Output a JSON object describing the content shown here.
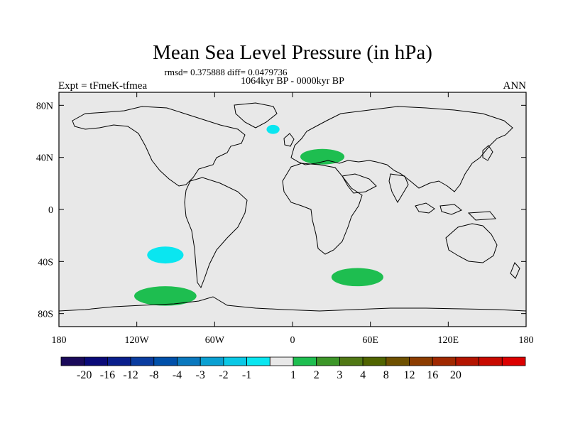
{
  "chart_data": {
    "type": "heatmap",
    "title": "Mean Sea Level Pressure (in hPa)",
    "stats_line": "rmsd= 0.375888 diff= 0.0479736",
    "period": "1064kyr BP - 0000kyr BP",
    "left_label": "Expt = tFmeK-tfmea",
    "right_label": "ANN",
    "projection": "cylindrical equidistant",
    "xlim": [
      -180,
      180
    ],
    "ylim": [
      -90,
      90
    ],
    "x_ticks": [
      {
        "value": -180,
        "label": "180"
      },
      {
        "value": -120,
        "label": "120W"
      },
      {
        "value": -60,
        "label": "60W"
      },
      {
        "value": 0,
        "label": "0"
      },
      {
        "value": 60,
        "label": "60E"
      },
      {
        "value": 120,
        "label": "120E"
      },
      {
        "value": 180,
        "label": "180"
      }
    ],
    "y_ticks": [
      {
        "value": 80,
        "label": "80N"
      },
      {
        "value": 40,
        "label": "40N"
      },
      {
        "value": 0,
        "label": "0"
      },
      {
        "value": -40,
        "label": "40S"
      },
      {
        "value": -80,
        "label": "80S"
      }
    ],
    "colorbar": {
      "colors": [
        "#1a0a5a",
        "#0a0a78",
        "#0a1e8c",
        "#0a3ca0",
        "#0050aa",
        "#0a78be",
        "#0aa0d2",
        "#0ac8e6",
        "#0ae6f0",
        "#e8e8e8",
        "#1ebe50",
        "#3c9628",
        "#507814",
        "#506400",
        "#6e5000",
        "#8c3c00",
        "#a02800",
        "#b41400",
        "#c80a00",
        "#dc0000"
      ],
      "labels": [
        "-20",
        "-16",
        "-12",
        "-8",
        "-4",
        "-3",
        "-2",
        "-1",
        "1",
        "2",
        "3",
        "4",
        "8",
        "12",
        "16",
        "20"
      ],
      "label_positions": [
        1,
        2,
        3,
        4,
        5,
        6,
        7,
        8,
        10,
        11,
        12,
        13,
        14,
        15,
        16,
        17
      ]
    },
    "field_anomalies": [
      {
        "name": "north-atlantic-negative",
        "lon": -15,
        "lat": 61.5,
        "rx": 5,
        "ry": 3.5,
        "class": "-2 to -1",
        "color": "#0ae6f0"
      },
      {
        "name": "southeast-pacific-negative",
        "lon": -98,
        "lat": -35,
        "rx": 14,
        "ry": 6.5,
        "class": "-2 to -1",
        "color": "#0ae6f0"
      },
      {
        "name": "mediterranean-positive",
        "lon": 23,
        "lat": 40.5,
        "rx": 17,
        "ry": 6,
        "class": "1 to 2",
        "color": "#1ebe50"
      },
      {
        "name": "south-indian-positive",
        "lon": 50,
        "lat": -52,
        "rx": 20,
        "ry": 7,
        "class": "1 to 2",
        "color": "#1ebe50"
      },
      {
        "name": "amundsen-sea-positive",
        "lon": -98,
        "lat": -66.5,
        "rx": 24,
        "ry": 7.5,
        "class": "1 to 2",
        "color": "#1ebe50"
      }
    ]
  }
}
